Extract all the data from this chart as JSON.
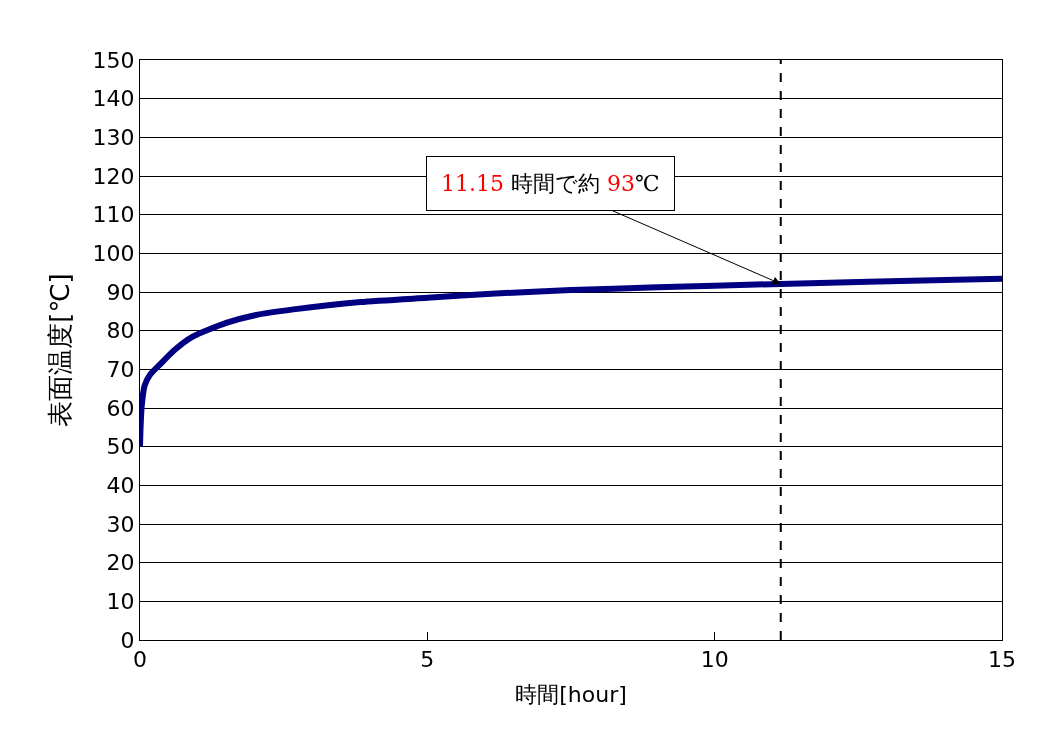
{
  "chart_data": {
    "type": "line",
    "xlabel": "時間[hour]",
    "ylabel": "表面温度[℃]",
    "series": [
      {
        "color": "#000080",
        "x": [
          0,
          0.01,
          0.03,
          0.08,
          0.18,
          0.33,
          0.6,
          0.91,
          1.5,
          2.0,
          2.67,
          3.84,
          5.0,
          6.19,
          7.5,
          9.0,
          10.0,
          11.15,
          12.5,
          14.0,
          15.0
        ],
        "values": [
          50,
          55,
          60.5,
          65.8,
          68.7,
          71,
          75,
          78.4,
          82,
          84,
          85.5,
          87.4,
          88.5,
          89.6,
          90.5,
          91.2,
          91.6,
          92.1,
          92.6,
          93.1,
          93.4
        ]
      }
    ],
    "xlim": [
      0,
      15
    ],
    "xticks": [
      0,
      5,
      10,
      15
    ],
    "ylim": [
      0,
      150
    ],
    "yticks": [
      0,
      10,
      20,
      30,
      40,
      50,
      60,
      70,
      80,
      90,
      100,
      110,
      120,
      130,
      140,
      150
    ],
    "grid": "y",
    "legend": false,
    "marker": "none",
    "line_style": "solid",
    "ref_lines": [
      {
        "axis": "x",
        "value": 11.15,
        "color": "#000000",
        "line_style": "dashed"
      }
    ],
    "annotations": [
      {
        "text": "11.15 時間で約 93℃",
        "x": 11.15,
        "y": 92.1
      }
    ]
  }
}
